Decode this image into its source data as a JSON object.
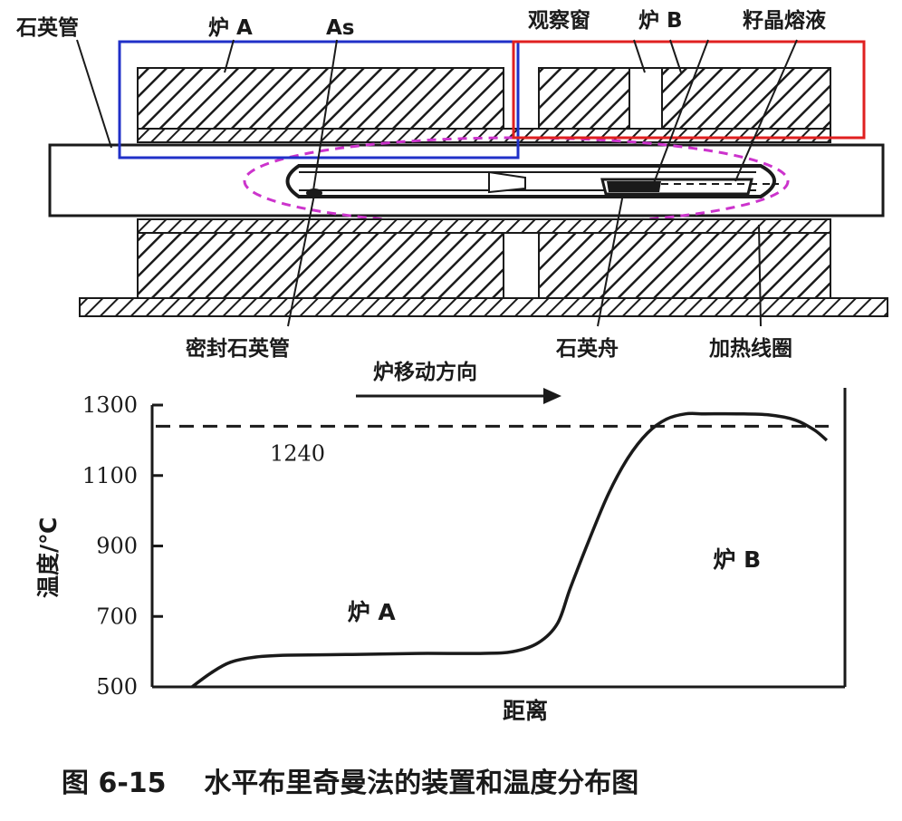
{
  "diagram": {
    "labels": {
      "quartz_tube": "石英管",
      "furnace_a": "炉 A",
      "as": "As",
      "window": "观察窗",
      "furnace_b": "炉 B",
      "seed_melt": "籽晶熔液",
      "sealed_tube": "密封石英管",
      "boat": "石英舟",
      "coil": "加热线圈",
      "move_dir": "炉移动方向"
    },
    "colors": {
      "box_a": "#2030c8",
      "box_b": "#e02020",
      "ellipse": "#cc33cc"
    }
  },
  "chart_data": {
    "type": "line",
    "title": "",
    "xlabel": "距离",
    "ylabel": "温度/℃",
    "ylim": [
      500,
      1300
    ],
    "yticks": [
      500,
      700,
      900,
      1100,
      1300
    ],
    "reference_line": {
      "value": 1240,
      "label": "1240",
      "style": "dashed"
    },
    "x_range": [
      0,
      100
    ],
    "series": [
      {
        "name": "",
        "x": [
          0,
          3,
          6,
          10,
          15,
          25,
          35,
          45,
          50,
          54,
          57,
          59,
          62,
          65,
          68,
          71,
          74,
          77,
          80,
          85,
          90,
          94,
          97,
          99
        ],
        "y": [
          500,
          540,
          570,
          585,
          590,
          592,
          595,
          595,
          600,
          625,
          680,
          780,
          920,
          1050,
          1150,
          1220,
          1260,
          1275,
          1275,
          1275,
          1272,
          1258,
          1230,
          1200
        ]
      }
    ],
    "annotations": [
      {
        "text": "炉 A",
        "x": 28,
        "y": 690
      },
      {
        "text": "炉 B",
        "x": 85,
        "y": 840
      }
    ]
  },
  "caption": "图 6-15    水平布里奇曼法的装置和温度分布图"
}
